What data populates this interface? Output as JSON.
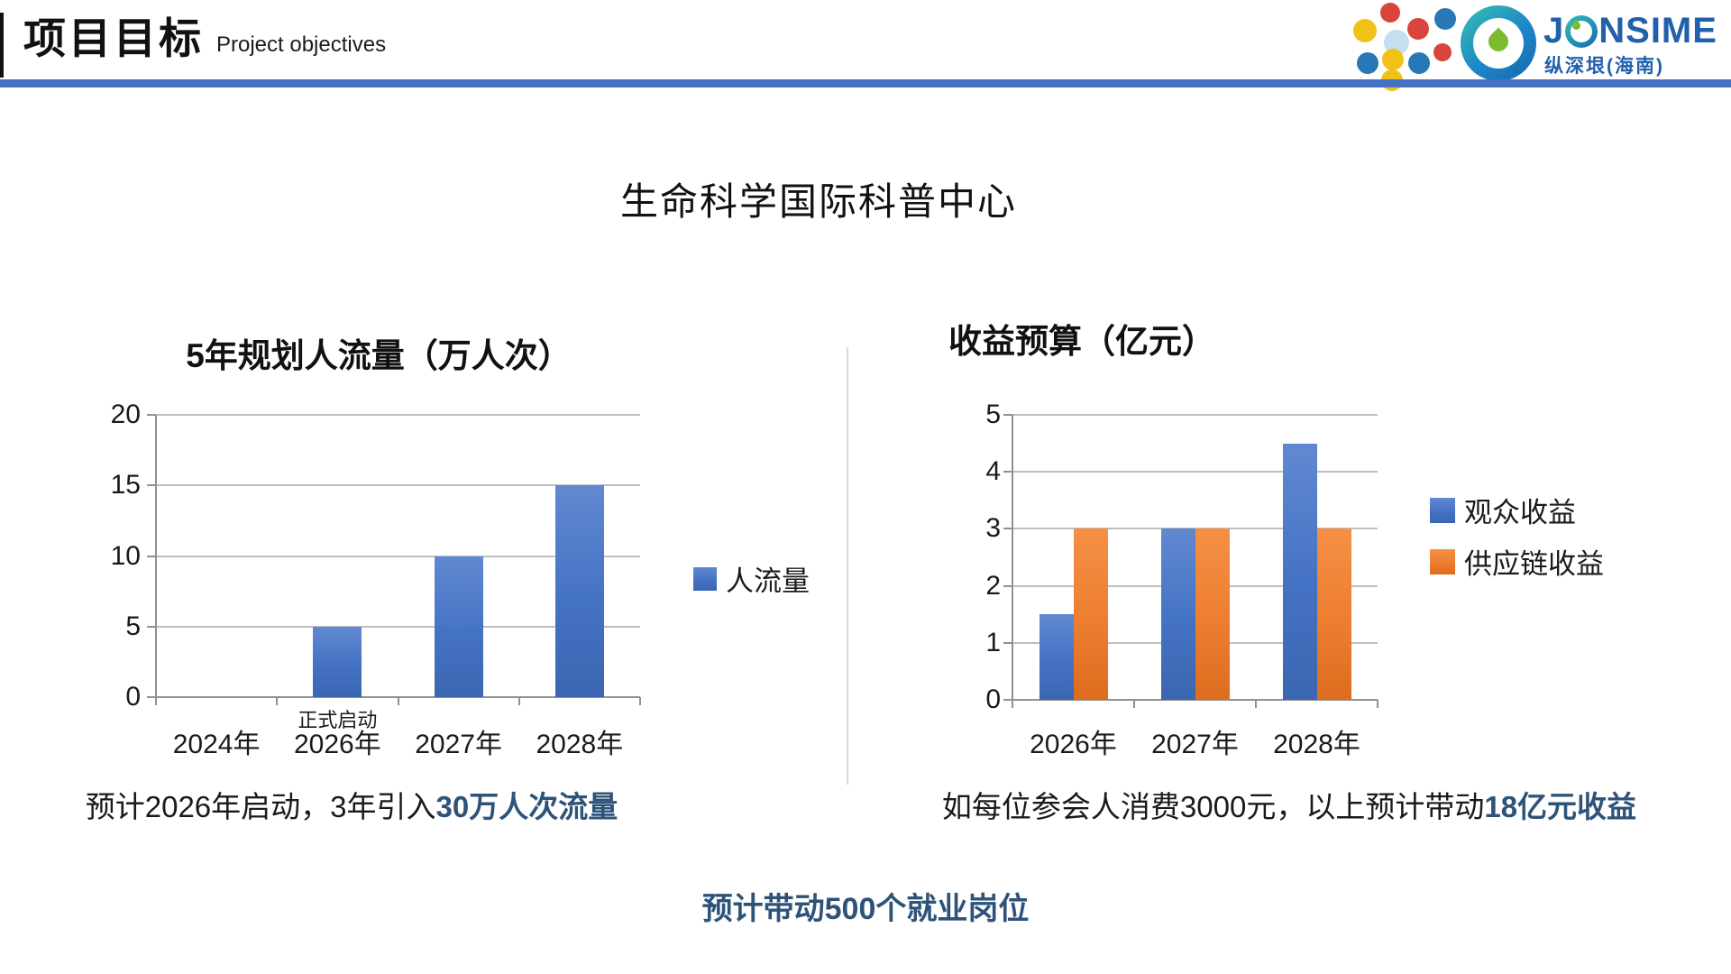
{
  "header": {
    "title": "项目目标",
    "subtitle": "Project objectives",
    "brand": {
      "name": "JONSIME",
      "sub": "纵深垠(海南)",
      "brand_color": "#2160AC"
    }
  },
  "main_title": "生命科学国际科普中心",
  "chart_data": [
    {
      "type": "bar",
      "title": "5年规划人流量（万人次）",
      "categories": [
        "2024年",
        "2026年",
        "2027年",
        "2028年"
      ],
      "series": [
        {
          "name": "人流量",
          "color": "#4472C4",
          "values": [
            0,
            5,
            10,
            15
          ]
        }
      ],
      "ylim": [
        0,
        20
      ],
      "ytick_step": 5,
      "grid": true,
      "legend_position": "right-middle",
      "annotation": {
        "text": "正式启动",
        "category_index": 1
      }
    },
    {
      "type": "bar",
      "title": "收益预算（亿元）",
      "categories": [
        "2026年",
        "2027年",
        "2028年"
      ],
      "series": [
        {
          "name": "观众收益",
          "color": "#4472C4",
          "values": [
            1.5,
            3,
            4.5
          ]
        },
        {
          "name": "供应链收益",
          "color": "#ED7D31",
          "values": [
            3,
            3,
            3
          ]
        }
      ],
      "ylim": [
        0,
        5
      ],
      "ytick_step": 1,
      "grid": true,
      "legend_position": "right"
    }
  ],
  "captions": {
    "left": {
      "prefix": "预计2026年启动，3年引入",
      "highlight": "30万人次流量"
    },
    "right": {
      "prefix": "如每位参会人消费3000元，以上预计带动",
      "highlight": "18亿元收益"
    },
    "bottom": "预计带动500个就业岗位"
  },
  "colors": {
    "accent_blue": "#4472C4",
    "accent_orange": "#ED7D31",
    "highlight_text": "#2E5378",
    "header_rule": "#4472C4"
  }
}
